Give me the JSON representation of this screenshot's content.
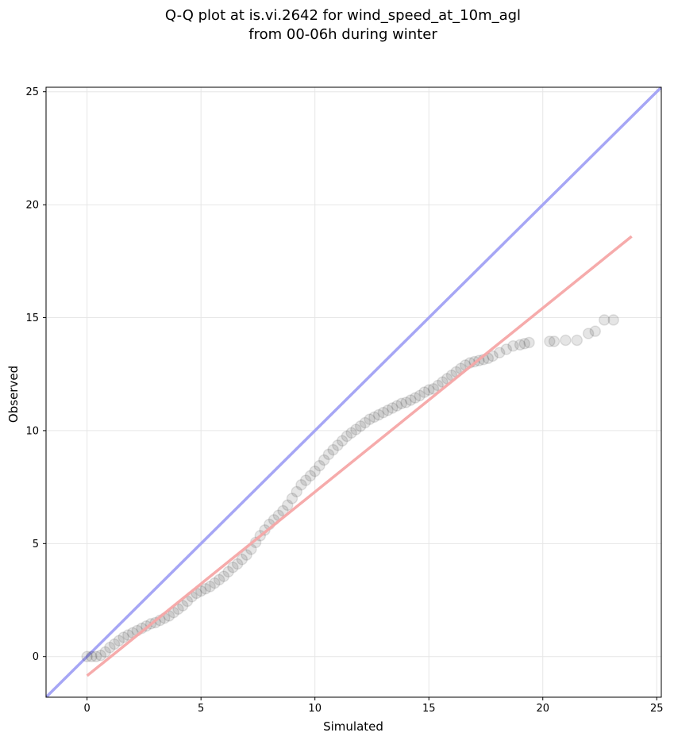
{
  "chart_data": {
    "type": "scatter",
    "title_line1": "Q-Q plot at is.vi.2642 for wind_speed_at_10m_agl",
    "title_line2": "from 00-06h during winter",
    "xlabel": "Simulated",
    "ylabel": "Observed",
    "xlim": [
      -1.8,
      25.2
    ],
    "ylim": [
      -1.8,
      25.2
    ],
    "xticks": [
      0,
      5,
      10,
      15,
      20,
      25
    ],
    "yticks": [
      0,
      5,
      10,
      15,
      20,
      25
    ],
    "grid": true,
    "points": {
      "color": "#000000",
      "x": [
        0.0,
        0.2,
        0.4,
        0.6,
        0.8,
        1.0,
        1.2,
        1.4,
        1.6,
        1.8,
        2.0,
        2.2,
        2.4,
        2.6,
        2.8,
        3.0,
        3.2,
        3.4,
        3.6,
        3.8,
        4.0,
        4.2,
        4.4,
        4.6,
        4.8,
        5.0,
        5.2,
        5.4,
        5.6,
        5.8,
        6.0,
        6.2,
        6.4,
        6.6,
        6.8,
        7.0,
        7.2,
        7.4,
        7.6,
        7.8,
        8.0,
        8.2,
        8.4,
        8.6,
        8.8,
        9.0,
        9.2,
        9.4,
        9.6,
        9.8,
        10.0,
        10.2,
        10.4,
        10.6,
        10.8,
        11.0,
        11.2,
        11.4,
        11.6,
        11.8,
        12.0,
        12.2,
        12.4,
        12.6,
        12.8,
        13.0,
        13.2,
        13.4,
        13.6,
        13.8,
        14.0,
        14.2,
        14.4,
        14.6,
        14.8,
        15.0,
        15.2,
        15.4,
        15.6,
        15.8,
        16.0,
        16.2,
        16.4,
        16.6,
        16.8,
        17.0,
        17.2,
        17.4,
        17.6,
        17.8,
        18.1,
        18.4,
        18.7,
        19.0,
        19.2,
        19.4,
        20.3,
        20.5,
        21.0,
        21.5,
        22.0,
        22.3,
        22.7,
        23.1
      ],
      "y": [
        0.0,
        0.0,
        0.0,
        0.05,
        0.2,
        0.4,
        0.55,
        0.7,
        0.85,
        0.95,
        1.05,
        1.15,
        1.25,
        1.35,
        1.45,
        1.5,
        1.6,
        1.7,
        1.8,
        1.95,
        2.1,
        2.25,
        2.45,
        2.65,
        2.8,
        2.9,
        3.0,
        3.1,
        3.25,
        3.4,
        3.55,
        3.75,
        3.95,
        4.1,
        4.3,
        4.5,
        4.75,
        5.05,
        5.35,
        5.6,
        5.85,
        6.05,
        6.25,
        6.45,
        6.7,
        7.0,
        7.3,
        7.6,
        7.8,
        8.0,
        8.2,
        8.45,
        8.7,
        8.95,
        9.15,
        9.35,
        9.55,
        9.75,
        9.9,
        10.05,
        10.2,
        10.35,
        10.5,
        10.6,
        10.7,
        10.8,
        10.9,
        11.0,
        11.1,
        11.2,
        11.25,
        11.35,
        11.45,
        11.55,
        11.7,
        11.8,
        11.85,
        12.0,
        12.15,
        12.3,
        12.45,
        12.6,
        12.75,
        12.9,
        13.0,
        13.05,
        13.1,
        13.15,
        13.2,
        13.3,
        13.45,
        13.6,
        13.75,
        13.8,
        13.85,
        13.9,
        13.95,
        13.95,
        14.0,
        14.0,
        14.3,
        14.4,
        14.9,
        14.9
      ]
    },
    "reference_line": {
      "label": "1:1",
      "color": "#a6a6f5",
      "x": [
        -1.8,
        25.2
      ],
      "y": [
        -1.8,
        25.2
      ]
    },
    "fit_line": {
      "color": "#f5a6a6",
      "x": [
        0.0,
        23.9
      ],
      "y": [
        -0.85,
        18.6
      ]
    }
  }
}
